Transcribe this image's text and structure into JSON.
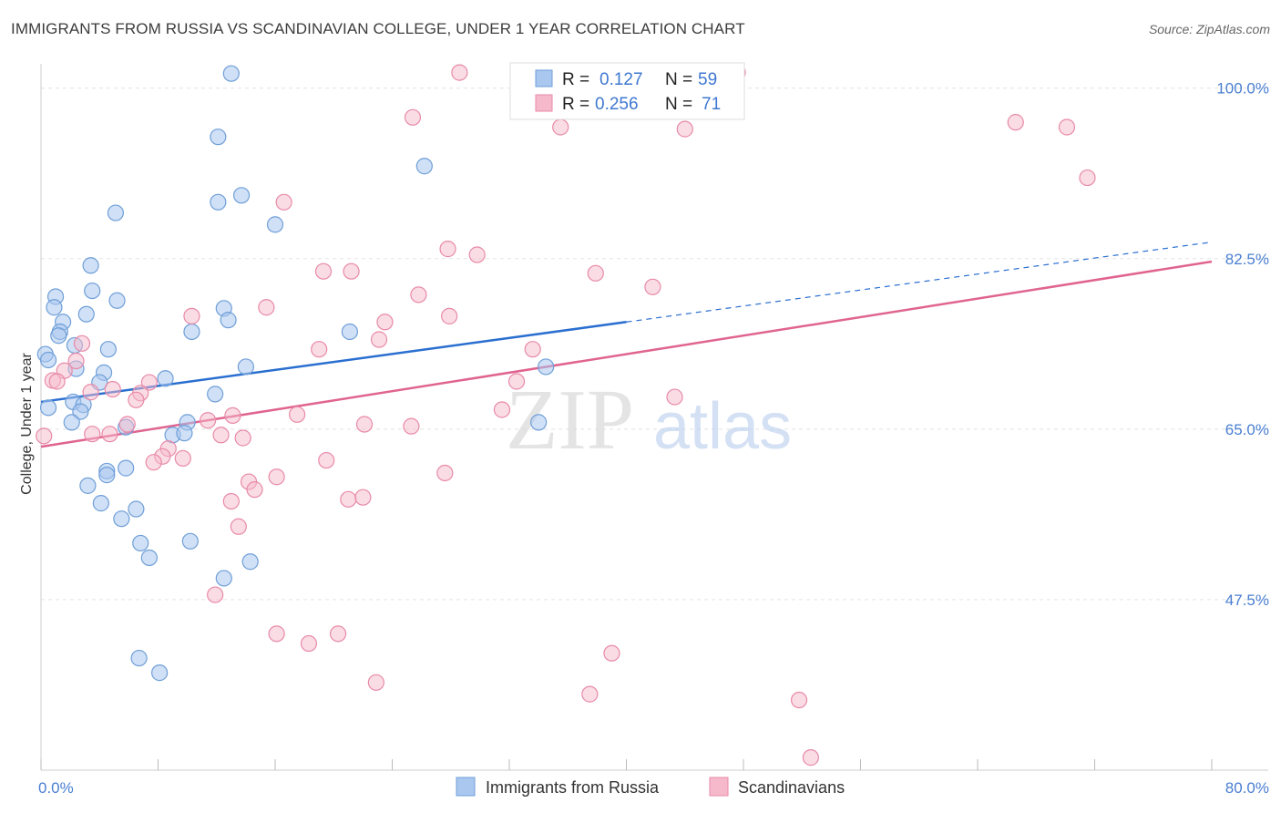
{
  "title": "IMMIGRANTS FROM RUSSIA VS SCANDINAVIAN COLLEGE, UNDER 1 YEAR CORRELATION CHART",
  "source": "Source: ZipAtlas.com",
  "watermark": {
    "part1": "ZIP",
    "part2": "atlas"
  },
  "colors": {
    "blue_fill": "#a9c7ef",
    "blue_stroke": "#6f9fd8",
    "blue_line": "#2a6fd0",
    "pink_fill": "#f6b9cb",
    "pink_stroke": "#e88aa8",
    "pink_line": "#e06490",
    "tick_label": "#4a7fd1",
    "grid": "#e3e3e3"
  },
  "chart_data": {
    "type": "scatter",
    "title": "IMMIGRANTS FROM RUSSIA VS SCANDINAVIAN COLLEGE, UNDER 1 YEAR CORRELATION CHART",
    "xlabel": "",
    "ylabel": "College, Under 1 year",
    "xlim": [
      0,
      80
    ],
    "ylim": [
      30,
      102.5
    ],
    "x_tick_labels": [
      "0.0%",
      "80.0%"
    ],
    "y_ticks": [
      47.5,
      65.0,
      82.5,
      100.0
    ],
    "y_tick_labels": [
      "47.5%",
      "65.0%",
      "82.5%",
      "100.0%"
    ],
    "grid": "horizontal dashed",
    "legend_position": "top-center",
    "legend": [
      {
        "r_label": "R =",
        "r_value": "0.127",
        "n_label": "N =",
        "n_value": "59"
      },
      {
        "r_label": "R =",
        "r_value": "0.256",
        "n_label": "N =",
        "n_value": "71"
      }
    ],
    "series": [
      {
        "name": "Immigrants from Russia",
        "color": "#a9c7ef",
        "trend": {
          "x": [
            0,
            40
          ],
          "y": [
            67.8,
            76.0
          ],
          "dashed_to": [
            80,
            84.2
          ]
        },
        "points": [
          [
            13.0,
            101.5
          ],
          [
            12.1,
            95.0
          ],
          [
            26.2,
            92.0
          ],
          [
            12.1,
            88.3
          ],
          [
            13.7,
            89.0
          ],
          [
            5.1,
            87.2
          ],
          [
            16.0,
            86.0
          ],
          [
            3.4,
            81.8
          ],
          [
            1.0,
            78.6
          ],
          [
            3.5,
            79.2
          ],
          [
            5.2,
            78.2
          ],
          [
            0.9,
            77.5
          ],
          [
            1.5,
            76.0
          ],
          [
            1.3,
            75.0
          ],
          [
            3.1,
            76.8
          ],
          [
            12.5,
            77.4
          ],
          [
            12.8,
            76.2
          ],
          [
            10.3,
            75.0
          ],
          [
            21.1,
            75.0
          ],
          [
            1.2,
            74.6
          ],
          [
            2.3,
            73.6
          ],
          [
            4.6,
            73.2
          ],
          [
            0.3,
            72.7
          ],
          [
            0.5,
            72.1
          ],
          [
            2.4,
            71.2
          ],
          [
            14.0,
            71.4
          ],
          [
            4.3,
            70.8
          ],
          [
            8.5,
            70.2
          ],
          [
            4.0,
            69.8
          ],
          [
            0.5,
            67.2
          ],
          [
            2.2,
            67.8
          ],
          [
            2.9,
            67.5
          ],
          [
            2.7,
            66.8
          ],
          [
            11.9,
            68.6
          ],
          [
            34.5,
            71.4
          ],
          [
            10.0,
            65.7
          ],
          [
            2.1,
            65.7
          ],
          [
            5.8,
            65.2
          ],
          [
            9.0,
            64.4
          ],
          [
            9.8,
            64.6
          ],
          [
            34.0,
            65.7
          ],
          [
            4.5,
            60.7
          ],
          [
            5.8,
            61.0
          ],
          [
            4.5,
            60.3
          ],
          [
            3.2,
            59.2
          ],
          [
            4.1,
            57.4
          ],
          [
            6.5,
            56.8
          ],
          [
            5.5,
            55.8
          ],
          [
            6.8,
            53.3
          ],
          [
            10.2,
            53.5
          ],
          [
            7.4,
            51.8
          ],
          [
            14.3,
            51.4
          ],
          [
            12.5,
            49.7
          ],
          [
            6.7,
            41.5
          ],
          [
            8.1,
            40.0
          ]
        ]
      },
      {
        "name": "Scandinavians",
        "color": "#f6b9cb",
        "trend": {
          "x": [
            0,
            80
          ],
          "y": [
            63.2,
            82.2
          ]
        },
        "points": [
          [
            28.6,
            101.6
          ],
          [
            47.6,
            101.6
          ],
          [
            25.4,
            97.0
          ],
          [
            35.5,
            96.0
          ],
          [
            44.0,
            95.8
          ],
          [
            66.6,
            96.5
          ],
          [
            70.1,
            96.0
          ],
          [
            71.5,
            90.8
          ],
          [
            16.6,
            88.3
          ],
          [
            27.8,
            83.5
          ],
          [
            29.8,
            82.9
          ],
          [
            19.3,
            81.2
          ],
          [
            21.2,
            81.2
          ],
          [
            37.9,
            81.0
          ],
          [
            41.8,
            79.6
          ],
          [
            25.8,
            78.8
          ],
          [
            15.4,
            77.5
          ],
          [
            27.9,
            76.6
          ],
          [
            10.3,
            76.6
          ],
          [
            23.5,
            76.0
          ],
          [
            23.1,
            74.2
          ],
          [
            2.8,
            73.8
          ],
          [
            19.0,
            73.2
          ],
          [
            33.6,
            73.2
          ],
          [
            2.4,
            72.0
          ],
          [
            1.6,
            71.0
          ],
          [
            0.8,
            70.0
          ],
          [
            1.1,
            69.9
          ],
          [
            7.4,
            69.8
          ],
          [
            32.5,
            69.9
          ],
          [
            4.9,
            69.1
          ],
          [
            3.4,
            68.8
          ],
          [
            6.8,
            68.7
          ],
          [
            6.5,
            68.0
          ],
          [
            43.3,
            68.3
          ],
          [
            0.2,
            64.3
          ],
          [
            17.5,
            66.5
          ],
          [
            31.5,
            67.0
          ],
          [
            5.9,
            65.5
          ],
          [
            11.4,
            65.9
          ],
          [
            13.1,
            66.4
          ],
          [
            22.1,
            65.5
          ],
          [
            25.3,
            65.3
          ],
          [
            3.5,
            64.5
          ],
          [
            4.7,
            64.5
          ],
          [
            12.3,
            64.4
          ],
          [
            13.8,
            64.1
          ],
          [
            8.7,
            63.0
          ],
          [
            8.3,
            62.2
          ],
          [
            9.7,
            62.0
          ],
          [
            7.7,
            61.6
          ],
          [
            19.5,
            61.8
          ],
          [
            27.6,
            60.5
          ],
          [
            16.1,
            60.1
          ],
          [
            14.2,
            59.6
          ],
          [
            14.6,
            58.8
          ],
          [
            21.0,
            57.8
          ],
          [
            22.0,
            58.0
          ],
          [
            13.0,
            57.6
          ],
          [
            13.5,
            55.0
          ],
          [
            11.9,
            48.0
          ],
          [
            16.1,
            44.0
          ],
          [
            18.3,
            43.0
          ],
          [
            20.3,
            44.0
          ],
          [
            39.0,
            42.0
          ],
          [
            22.9,
            39.0
          ],
          [
            37.5,
            37.8
          ],
          [
            51.8,
            37.2
          ],
          [
            52.6,
            31.3
          ]
        ]
      }
    ]
  }
}
